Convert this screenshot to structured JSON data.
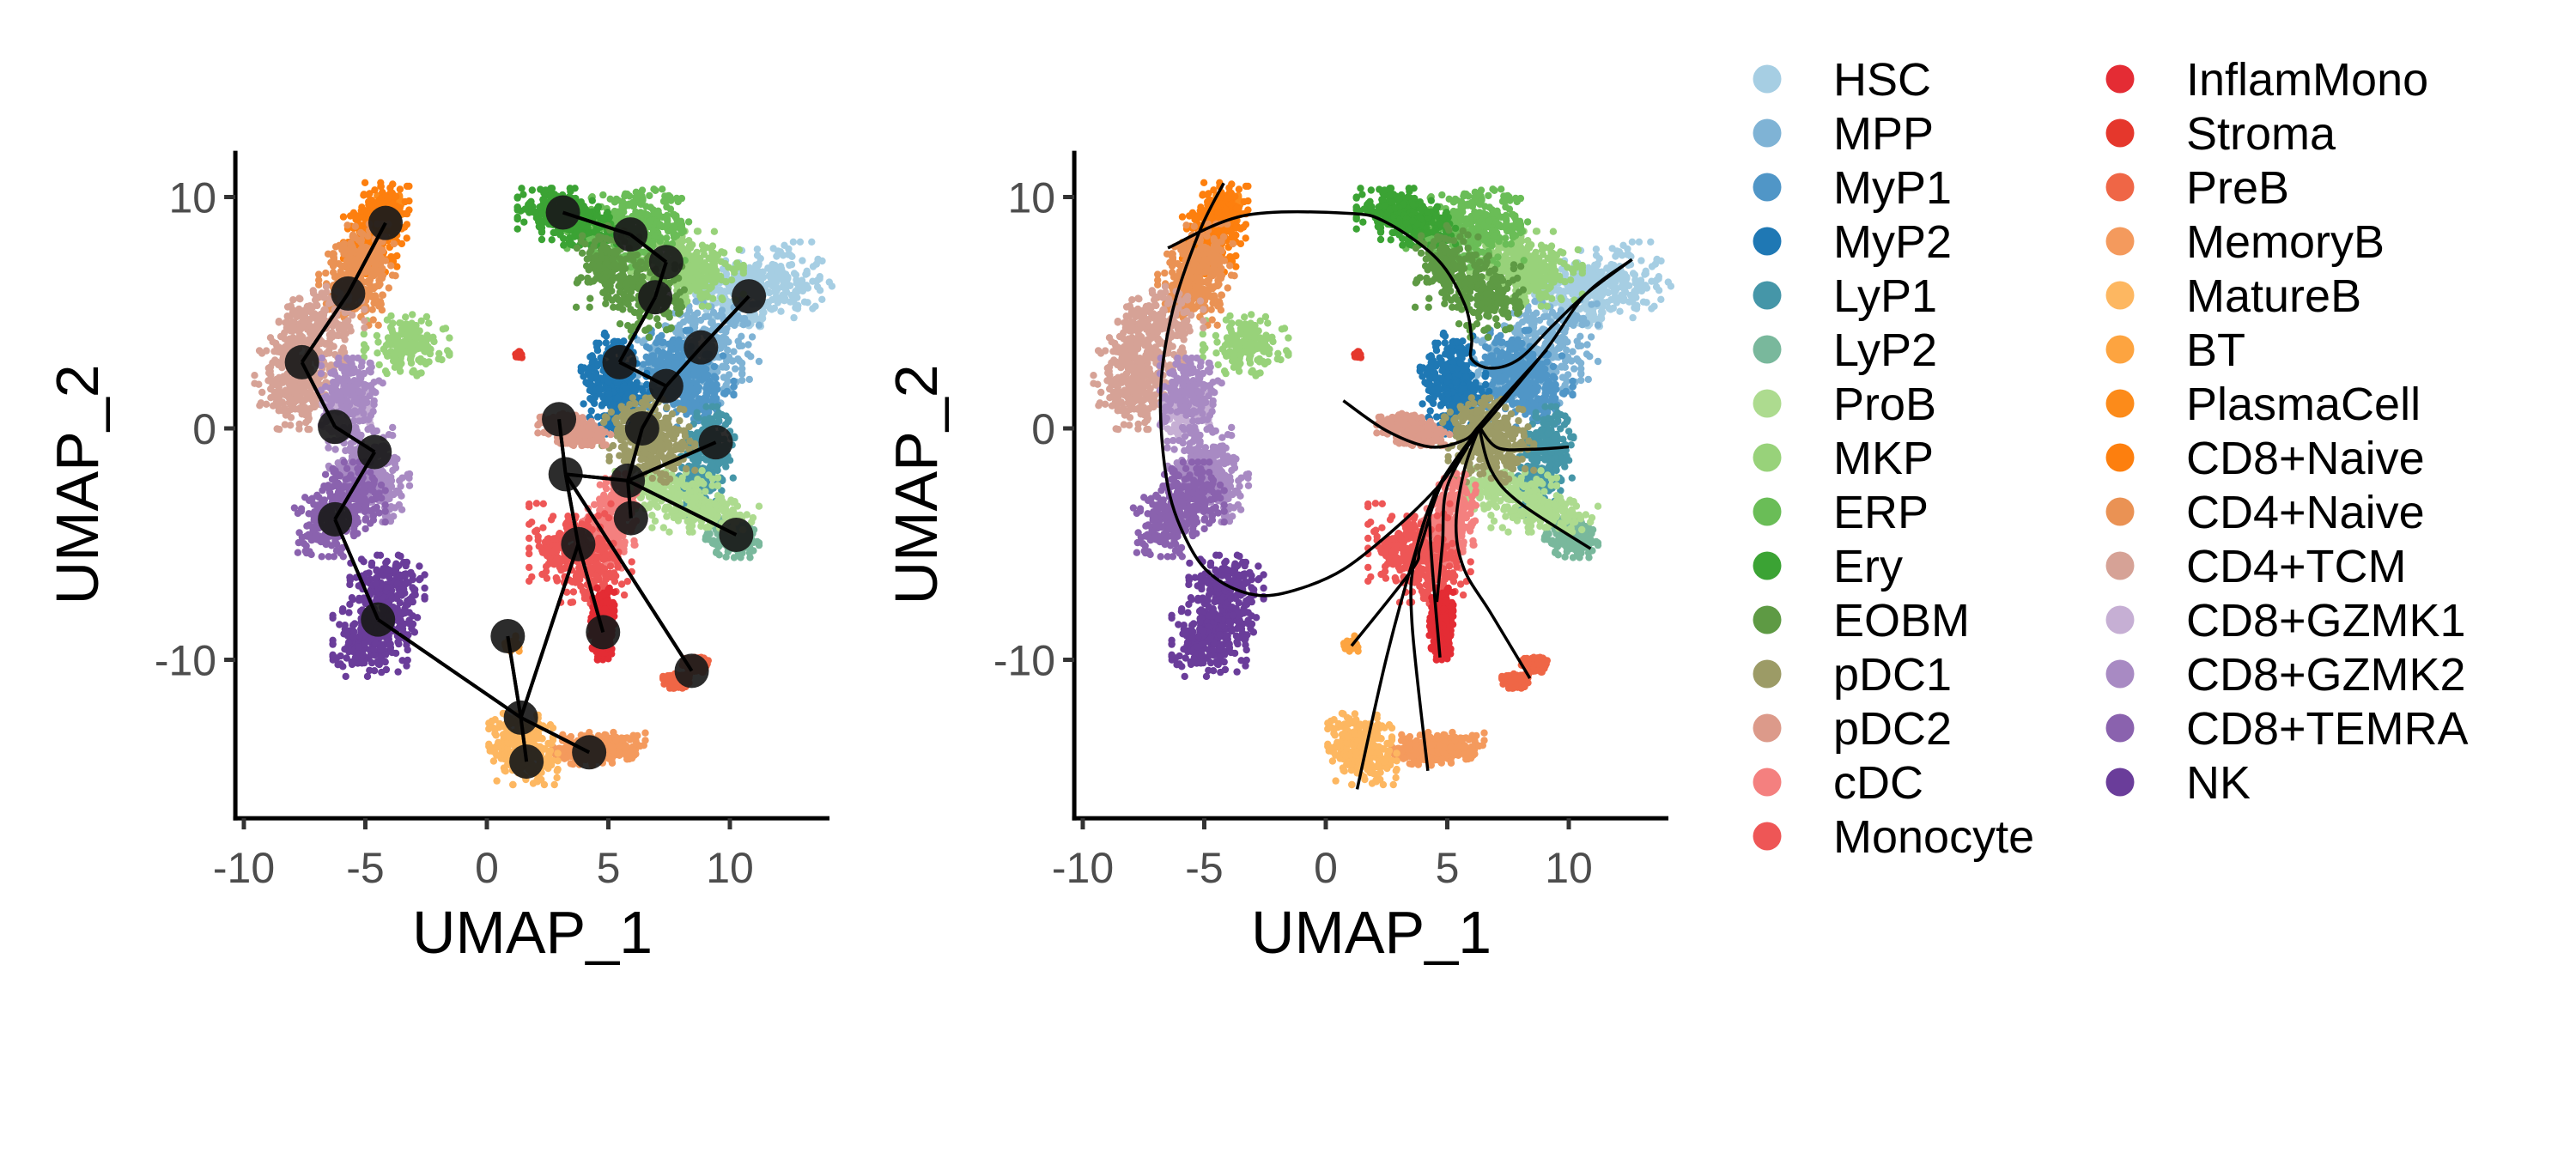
{
  "chart_data": [
    {
      "type": "scatter",
      "panel": "left",
      "overlay": "trajectory graph (nodes and edges)",
      "xlabel": "UMAP_1",
      "ylabel": "UMAP_2",
      "xlim": [
        -10.35,
        14.1
      ],
      "ylim": [
        -16.85,
        12.0
      ],
      "xticks": [
        -10,
        -5,
        0,
        5,
        10
      ],
      "yticks": [
        -10,
        0,
        10
      ],
      "grid": false,
      "nodes": [
        [
          -4.17,
          8.88
        ],
        [
          -5.71,
          5.83
        ],
        [
          -7.61,
          2.86
        ],
        [
          -6.25,
          0.07
        ],
        [
          -4.62,
          -1.02
        ],
        [
          -6.25,
          -3.93
        ],
        [
          -4.48,
          -8.26
        ],
        [
          1.4,
          -12.5
        ],
        [
          1.63,
          -14.4
        ],
        [
          4.21,
          -14.0
        ],
        [
          0.86,
          -8.98
        ],
        [
          3.76,
          -5.0
        ],
        [
          4.78,
          -8.81
        ],
        [
          2.97,
          0.4
        ],
        [
          3.24,
          -1.98
        ],
        [
          5.8,
          -2.26
        ],
        [
          5.93,
          -3.88
        ],
        [
          9.42,
          -0.6
        ],
        [
          10.26,
          -4.6
        ],
        [
          8.43,
          -10.48
        ],
        [
          6.39,
          0.0
        ],
        [
          7.38,
          1.83
        ],
        [
          5.46,
          2.86
        ],
        [
          8.81,
          3.5
        ],
        [
          10.78,
          5.71
        ],
        [
          6.93,
          5.67
        ],
        [
          7.38,
          7.19
        ],
        [
          5.91,
          8.38
        ],
        [
          3.13,
          9.33
        ]
      ],
      "edges": [
        [
          0,
          1
        ],
        [
          1,
          2
        ],
        [
          2,
          3
        ],
        [
          3,
          4
        ],
        [
          4,
          5
        ],
        [
          5,
          6
        ],
        [
          6,
          7
        ],
        [
          7,
          8
        ],
        [
          7,
          9
        ],
        [
          7,
          10
        ],
        [
          7,
          11
        ],
        [
          11,
          14
        ],
        [
          11,
          12
        ],
        [
          13,
          14
        ],
        [
          14,
          15
        ],
        [
          14,
          19
        ],
        [
          15,
          16
        ],
        [
          15,
          17
        ],
        [
          15,
          18
        ],
        [
          15,
          20
        ],
        [
          20,
          21
        ],
        [
          21,
          22
        ],
        [
          21,
          23
        ],
        [
          23,
          24
        ],
        [
          22,
          25
        ],
        [
          25,
          26
        ],
        [
          26,
          27
        ],
        [
          27,
          28
        ]
      ]
    },
    {
      "type": "scatter",
      "panel": "right",
      "overlay": "principal curves",
      "xlabel": "UMAP_1",
      "ylabel": "UMAP_2",
      "xlim": [
        -10.35,
        14.1
      ],
      "ylim": [
        -16.85,
        12.0
      ],
      "xticks": [
        -10,
        -5,
        0,
        5,
        10
      ],
      "yticks": [
        -10,
        0,
        10
      ],
      "grid": false,
      "curves": [
        [
          [
            -6.5,
            7.8
          ],
          [
            -3.35,
            9.2
          ],
          [
            0.84,
            9.3
          ],
          [
            2.5,
            8.9
          ],
          [
            4.6,
            7.3
          ],
          [
            5.7,
            5.4
          ],
          [
            6.0,
            3.9
          ],
          [
            6.0,
            3.0
          ],
          [
            6.8,
            2.6
          ],
          [
            7.96,
            3.0
          ],
          [
            9.3,
            4.4
          ],
          [
            10.7,
            5.8
          ],
          [
            12.6,
            7.3
          ]
        ],
        [
          [
            -4.2,
            10.6
          ],
          [
            -5.2,
            8.5
          ],
          [
            -6.3,
            5.1
          ],
          [
            -6.8,
            1.5
          ],
          [
            -6.5,
            -2.5
          ],
          [
            -5.6,
            -5.1
          ],
          [
            -4.5,
            -6.5
          ],
          [
            -2.9,
            -7.2
          ],
          [
            -1.3,
            -7.0
          ],
          [
            0.72,
            -6.1
          ],
          [
            2.99,
            -4.2
          ],
          [
            4.8,
            -2.3
          ],
          [
            5.9,
            -0.6
          ],
          [
            7.06,
            0.83
          ],
          [
            9.1,
            3.45
          ],
          [
            10.7,
            5.8
          ],
          [
            12.6,
            7.3
          ]
        ],
        [
          [
            0.72,
            1.2
          ],
          [
            2.5,
            -0.1
          ],
          [
            4.3,
            -0.8
          ],
          [
            5.7,
            -0.5
          ],
          [
            6.3,
            0.1
          ],
          [
            7.2,
            1.2
          ],
          [
            9.1,
            3.4
          ]
        ],
        [
          [
            6.3,
            0.1
          ],
          [
            7.06,
            -0.83
          ],
          [
            8.5,
            -0.9
          ],
          [
            10.0,
            -0.8
          ]
        ],
        [
          [
            6.3,
            0.1
          ],
          [
            6.8,
            -1.8
          ],
          [
            7.96,
            -3.2
          ],
          [
            10.9,
            -5.2
          ]
        ],
        [
          [
            6.3,
            0.0
          ],
          [
            5.7,
            -1.8
          ],
          [
            5.36,
            -4.2
          ],
          [
            5.7,
            -6.1
          ],
          [
            6.8,
            -8.0
          ],
          [
            8.4,
            -10.8
          ]
        ],
        [
          [
            6.3,
            0.0
          ],
          [
            5.0,
            -2.5
          ],
          [
            4.8,
            -5.0
          ],
          [
            4.57,
            -7.5
          ]
        ],
        [
          [
            6.3,
            0.0
          ],
          [
            4.8,
            -2.3
          ],
          [
            3.9,
            -5.1
          ],
          [
            3.55,
            -6.1
          ],
          [
            1.06,
            -9.4
          ]
        ],
        [
          [
            6.3,
            0.0
          ],
          [
            4.6,
            -2.6
          ],
          [
            3.7,
            -5.3
          ],
          [
            2.5,
            -9.9
          ],
          [
            1.29,
            -15.6
          ]
        ],
        [
          [
            6.3,
            0.0
          ],
          [
            4.6,
            -2.6
          ],
          [
            3.66,
            -5.6
          ],
          [
            3.55,
            -8.45
          ],
          [
            4.2,
            -14.8
          ]
        ],
        [
          [
            6.3,
            0.0
          ],
          [
            4.5,
            -2.8
          ],
          [
            4.3,
            -4.6
          ],
          [
            4.7,
            -9.9
          ]
        ]
      ]
    }
  ],
  "clusters": [
    {
      "name": "HSC",
      "color": "#a6cee3",
      "centers": [
        [
          10.5,
          5.8
        ],
        [
          12.0,
          6.3
        ]
      ],
      "sd": [
        1.0,
        0.8
      ]
    },
    {
      "name": "MPP",
      "color": "#7fb3d5",
      "centers": [
        [
          9.0,
          3.8
        ],
        [
          8.3,
          2.5
        ]
      ],
      "sd": [
        1.0,
        0.8
      ]
    },
    {
      "name": "MyP1",
      "color": "#5096c7",
      "centers": [
        [
          7.6,
          2.7
        ],
        [
          8.4,
          1.6
        ]
      ],
      "sd": [
        0.8,
        0.7
      ]
    },
    {
      "name": "MyP2",
      "color": "#1f78b4",
      "centers": [
        [
          5.2,
          2.6
        ],
        [
          5.4,
          1.3
        ]
      ],
      "sd": [
        0.6,
        0.7
      ]
    },
    {
      "name": "LyP1",
      "color": "#4596a8",
      "centers": [
        [
          9.2,
          -0.6
        ],
        [
          8.7,
          -2.2
        ]
      ],
      "sd": [
        0.45,
        0.7
      ]
    },
    {
      "name": "LyP2",
      "color": "#79b89c",
      "centers": [
        [
          10.1,
          -4.7
        ]
      ],
      "sd": [
        0.5,
        0.4
      ]
    },
    {
      "name": "ProB",
      "color": "#addb8f",
      "centers": [
        [
          7.3,
          -2.6
        ],
        [
          9.0,
          -3.6
        ]
      ],
      "sd": [
        1.0,
        0.4
      ]
    },
    {
      "name": "MKP",
      "color": "#98d27a",
      "centers": [
        [
          7.6,
          7.2
        ],
        [
          8.8,
          6.6
        ],
        [
          -3.3,
          3.6
        ]
      ],
      "sd": [
        0.8,
        0.6
      ]
    },
    {
      "name": "ERP",
      "color": "#6abd57",
      "centers": [
        [
          5.5,
          8.5
        ],
        [
          6.5,
          8.8
        ]
      ],
      "sd": [
        1.0,
        0.7
      ]
    },
    {
      "name": "Ery",
      "color": "#3ba334",
      "centers": [
        [
          2.8,
          9.5
        ],
        [
          3.8,
          8.8
        ]
      ],
      "sd": [
        0.7,
        0.4
      ]
    },
    {
      "name": "EOBM",
      "color": "#5e9a44",
      "centers": [
        [
          5.0,
          7.0
        ],
        [
          6.8,
          5.7
        ]
      ],
      "sd": [
        0.6,
        0.8
      ]
    },
    {
      "name": "pDC1",
      "color": "#9c9b66",
      "centers": [
        [
          6.5,
          0.0
        ],
        [
          6.8,
          -1.0
        ]
      ],
      "sd": [
        0.8,
        0.6
      ]
    },
    {
      "name": "pDC2",
      "color": "#dc9a8a",
      "centers": [
        [
          3.2,
          0.2
        ],
        [
          4.0,
          -0.3
        ]
      ],
      "sd": [
        0.5,
        0.2
      ]
    },
    {
      "name": "cDC",
      "color": "#f4807f",
      "centers": [
        [
          5.3,
          -3.5
        ],
        [
          4.8,
          -4.8
        ]
      ],
      "sd": [
        0.4,
        0.7
      ]
    },
    {
      "name": "Monocyte",
      "color": "#ee5656",
      "centers": [
        [
          3.5,
          -5.0
        ],
        [
          4.2,
          -6.0
        ]
      ],
      "sd": [
        0.8,
        0.8
      ]
    },
    {
      "name": "InflamMono",
      "color": "#e42c34",
      "centers": [
        [
          4.8,
          -8.0
        ],
        [
          4.7,
          -8.9
        ]
      ],
      "sd": [
        0.2,
        0.5
      ]
    },
    {
      "name": "Stroma",
      "color": "#e5372c",
      "centers": [
        [
          1.3,
          3.2
        ]
      ],
      "sd": [
        0.08,
        0.08
      ]
    },
    {
      "name": "PreB",
      "color": "#ef6646",
      "centers": [
        [
          7.8,
          -10.9
        ],
        [
          8.6,
          -10.2
        ]
      ],
      "sd": [
        0.25,
        0.15
      ]
    },
    {
      "name": "MemoryB",
      "color": "#f49a5d",
      "centers": [
        [
          4.0,
          -13.9
        ],
        [
          5.2,
          -13.8
        ]
      ],
      "sd": [
        0.6,
        0.3
      ]
    },
    {
      "name": "MatureB",
      "color": "#fdb761",
      "centers": [
        [
          1.6,
          -14.3
        ],
        [
          1.4,
          -13.3
        ]
      ],
      "sd": [
        0.6,
        0.5
      ]
    },
    {
      "name": "BT",
      "color": "#fda440",
      "centers": [
        [
          1.0,
          -9.3
        ]
      ],
      "sd": [
        0.15,
        0.15
      ]
    },
    {
      "name": "PlasmaCell",
      "color": "#fc8b1a",
      "centers": [
        [
          -4.0,
          9.4
        ]
      ],
      "sd": [
        0.25,
        0.3
      ]
    },
    {
      "name": "CD8+Naive",
      "color": "#fd7f0e",
      "centers": [
        [
          -4.3,
          9.3
        ],
        [
          -4.8,
          8.0
        ]
      ],
      "sd": [
        0.5,
        0.6
      ]
    },
    {
      "name": "CD4+Naive",
      "color": "#ea9254",
      "centers": [
        [
          -5.6,
          6.0
        ],
        [
          -5.0,
          7.3
        ]
      ],
      "sd": [
        0.6,
        0.7
      ]
    },
    {
      "name": "CD4+TCM",
      "color": "#d6a296",
      "centers": [
        [
          -7.6,
          3.0
        ],
        [
          -6.8,
          4.6
        ],
        [
          -7.8,
          1.5
        ]
      ],
      "sd": [
        0.8,
        0.7
      ]
    },
    {
      "name": "CD8+GZMK1",
      "color": "#c6afd4",
      "centers": [
        [
          -5.8,
          0.8
        ]
      ],
      "sd": [
        0.5,
        0.5
      ]
    },
    {
      "name": "CD8+GZMK2",
      "color": "#a88ac3",
      "centers": [
        [
          -5.2,
          -1.5
        ],
        [
          -4.5,
          -2.5
        ],
        [
          -5.5,
          1.5
        ]
      ],
      "sd": [
        0.6,
        0.7
      ]
    },
    {
      "name": "CD8+TEMRA",
      "color": "#8a62ae",
      "centers": [
        [
          -6.6,
          -4.0
        ],
        [
          -5.5,
          -3.0
        ]
      ],
      "sd": [
        0.6,
        0.7
      ]
    },
    {
      "name": "NK",
      "color": "#6a3d9a",
      "centers": [
        [
          -4.4,
          -8.3
        ],
        [
          -4.1,
          -6.8
        ],
        [
          -4.8,
          -9.4
        ]
      ],
      "sd": [
        0.7,
        0.6
      ]
    }
  ],
  "legend": {
    "position": "right",
    "columns": [
      [
        "HSC",
        "MPP",
        "MyP1",
        "MyP2",
        "LyP1",
        "LyP2",
        "ProB",
        "MKP",
        "ERP",
        "Ery",
        "EOBM",
        "pDC1",
        "pDC2",
        "cDC",
        "Monocyte"
      ],
      [
        "InflamMono",
        "Stroma",
        "PreB",
        "MemoryB",
        "MatureB",
        "BT",
        "PlasmaCell",
        "CD8+Naive",
        "CD4+Naive",
        "CD4+TCM",
        "CD8+GZMK1",
        "CD8+GZMK2",
        "CD8+TEMRA",
        "NK"
      ]
    ]
  }
}
